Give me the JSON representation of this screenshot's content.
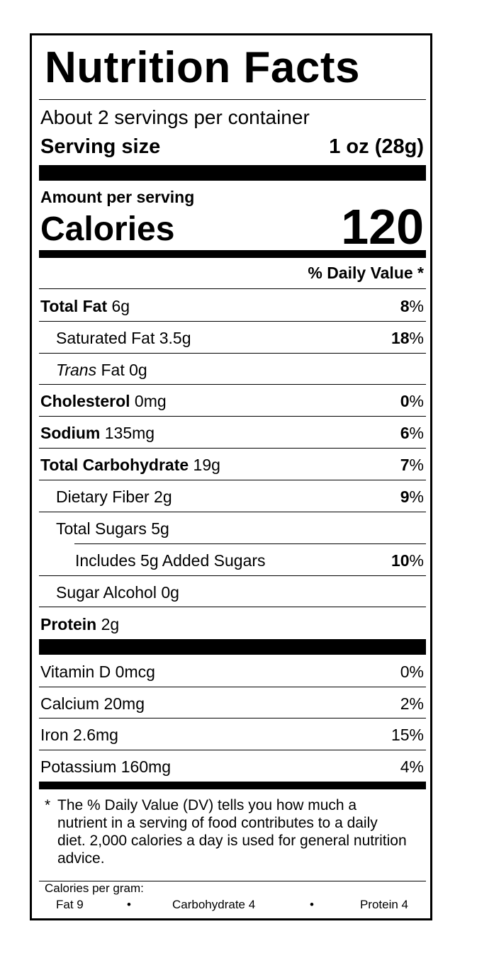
{
  "label": {
    "title": "Nutrition Facts",
    "servings_per_container": "About 2 servings per container",
    "serving_size_label": "Serving size",
    "serving_size_value": "1 oz (28g)",
    "amount_per_serving": "Amount per serving",
    "calories_label": "Calories",
    "calories_value": "120",
    "daily_value_header": "% Daily Value *"
  },
  "nutrients": [
    {
      "name": "Total Fat",
      "amount": " 6g",
      "dv_num": "8",
      "dv_sym": "%"
    },
    {
      "name": "Saturated Fat 3.5g",
      "dv_num": "18",
      "dv_sym": "%"
    },
    {
      "name_italic": "Trans",
      "name": " Fat 0g"
    },
    {
      "name": "Cholesterol",
      "amount": " 0mg",
      "dv_num": "0",
      "dv_sym": "%"
    },
    {
      "name": "Sodium",
      "amount": " 135mg",
      "dv_num": "6",
      "dv_sym": "%"
    },
    {
      "name": "Total Carbohydrate",
      "amount": " 19g",
      "dv_num": "7",
      "dv_sym": "%"
    },
    {
      "name": "Dietary Fiber 2g",
      "dv_num": "9",
      "dv_sym": "%"
    },
    {
      "name": "Total Sugars 5g"
    },
    {
      "name": "Includes 5g Added Sugars",
      "dv_num": "10",
      "dv_sym": "%"
    },
    {
      "name": "Sugar Alcohol 0g"
    },
    {
      "name": "Protein",
      "amount": " 2g"
    }
  ],
  "vitamins": [
    {
      "name": "Vitamin D 0mcg",
      "dv": "0%"
    },
    {
      "name": "Calcium 20mg",
      "dv": "2%"
    },
    {
      "name": "Iron 2.6mg",
      "dv": "15%"
    },
    {
      "name": "Potassium 160mg",
      "dv": "4%"
    }
  ],
  "footnote": {
    "star": "*",
    "text": "The % Daily Value (DV) tells you how much a nutrient in a serving of food contributes to a daily diet. 2,000 calories a day is used for general nutrition advice."
  },
  "calories_per_gram": {
    "title": "Calories per gram:",
    "fat": "Fat 9",
    "carbohydrate": "Carbohydrate 4",
    "protein": "Protein 4",
    "separator": "•"
  }
}
